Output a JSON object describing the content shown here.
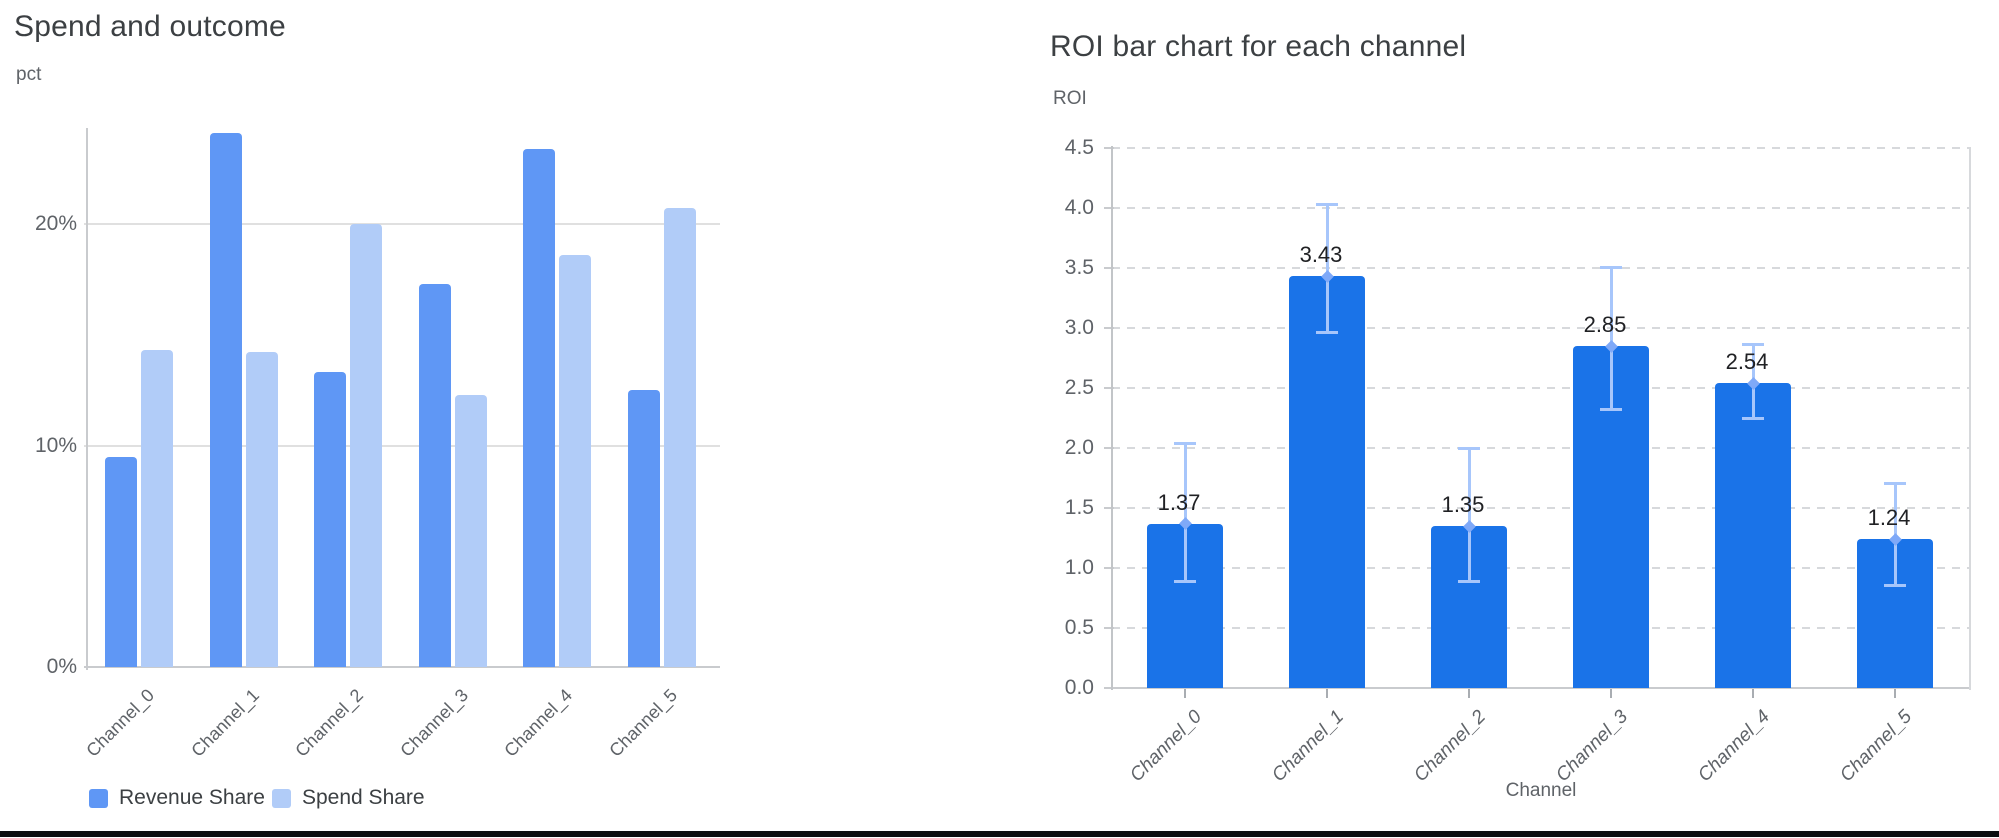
{
  "chart_data": [
    {
      "type": "bar",
      "title": "Spend and outcome",
      "ylabel": "pct",
      "xlabel": "",
      "categories": [
        "Channel_0",
        "Channel_1",
        "Channel_2",
        "Channel_3",
        "Channel_4",
        "Channel_5"
      ],
      "series": [
        {
          "name": "Revenue Share",
          "color": "#5f97f5",
          "values": [
            9.5,
            24.1,
            13.3,
            17.3,
            23.4,
            12.5
          ]
        },
        {
          "name": "Spend Share",
          "color": "#b1ccf8",
          "values": [
            14.3,
            14.2,
            20.0,
            12.3,
            18.6,
            20.7
          ]
        }
      ],
      "y_ticks": [
        {
          "value": 0,
          "label": "0%"
        },
        {
          "value": 10,
          "label": "10%"
        },
        {
          "value": 20,
          "label": "20%"
        }
      ],
      "ylim": [
        0,
        25
      ],
      "grid": "solid",
      "legend_position": "bottom"
    },
    {
      "type": "bar",
      "title": "ROI bar chart for each channel",
      "ylabel": "ROI",
      "xlabel": "Channel",
      "categories": [
        "Channel_0",
        "Channel_1",
        "Channel_2",
        "Channel_3",
        "Channel_4",
        "Channel_5"
      ],
      "series": [
        {
          "name": "ROI",
          "color": "#1a73e8",
          "values": [
            1.37,
            3.43,
            1.35,
            2.85,
            2.54,
            1.24
          ]
        }
      ],
      "value_labels": [
        "1.37",
        "3.43",
        "1.35",
        "2.85",
        "2.54",
        "1.24"
      ],
      "error_bars": [
        {
          "low": 0.88,
          "high": 2.04
        },
        {
          "low": 2.96,
          "high": 4.03
        },
        {
          "low": 0.88,
          "high": 2.0
        },
        {
          "low": 2.32,
          "high": 3.51
        },
        {
          "low": 2.24,
          "high": 2.87
        },
        {
          "low": 0.85,
          "high": 1.71
        }
      ],
      "error_bar_color": "#a7c6fb",
      "error_marker_color": "#7fa9f8",
      "y_ticks": [
        {
          "value": 0.0,
          "label": "0.0"
        },
        {
          "value": 0.5,
          "label": "0.5"
        },
        {
          "value": 1.0,
          "label": "1.0"
        },
        {
          "value": 1.5,
          "label": "1.5"
        },
        {
          "value": 2.0,
          "label": "2.0"
        },
        {
          "value": 2.5,
          "label": "2.5"
        },
        {
          "value": 3.0,
          "label": "3.0"
        },
        {
          "value": 3.5,
          "label": "3.5"
        },
        {
          "value": 4.0,
          "label": "4.0"
        },
        {
          "value": 4.5,
          "label": "4.5"
        }
      ],
      "ylim": [
        0,
        4.5
      ],
      "grid": "dashed",
      "legend_position": "none"
    }
  ]
}
